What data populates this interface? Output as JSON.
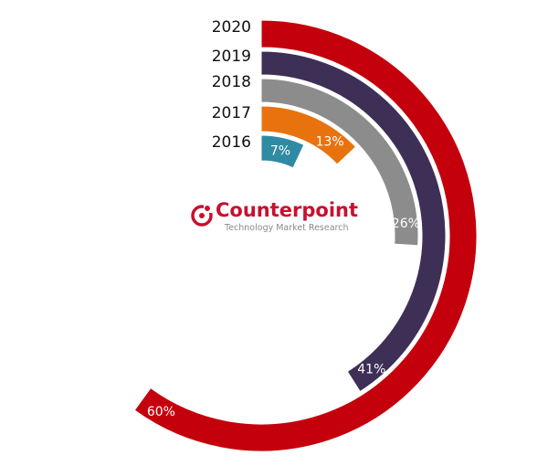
{
  "chart_data": {
    "type": "radial-bar",
    "title": "",
    "categories": [
      "2016",
      "2017",
      "2018",
      "2019",
      "2020"
    ],
    "values": [
      7,
      13,
      26,
      41,
      60
    ],
    "value_labels": [
      "7%",
      "13%",
      "26%",
      "41%",
      "60%"
    ],
    "colors": [
      "#2f8aa3",
      "#e8730e",
      "#8c8c8c",
      "#3e2f56",
      "#c4000c"
    ],
    "unit": "%",
    "max_angle_value": 100
  },
  "logo": {
    "name": "Counterpoint",
    "tagline": "Technology Market Research"
  }
}
